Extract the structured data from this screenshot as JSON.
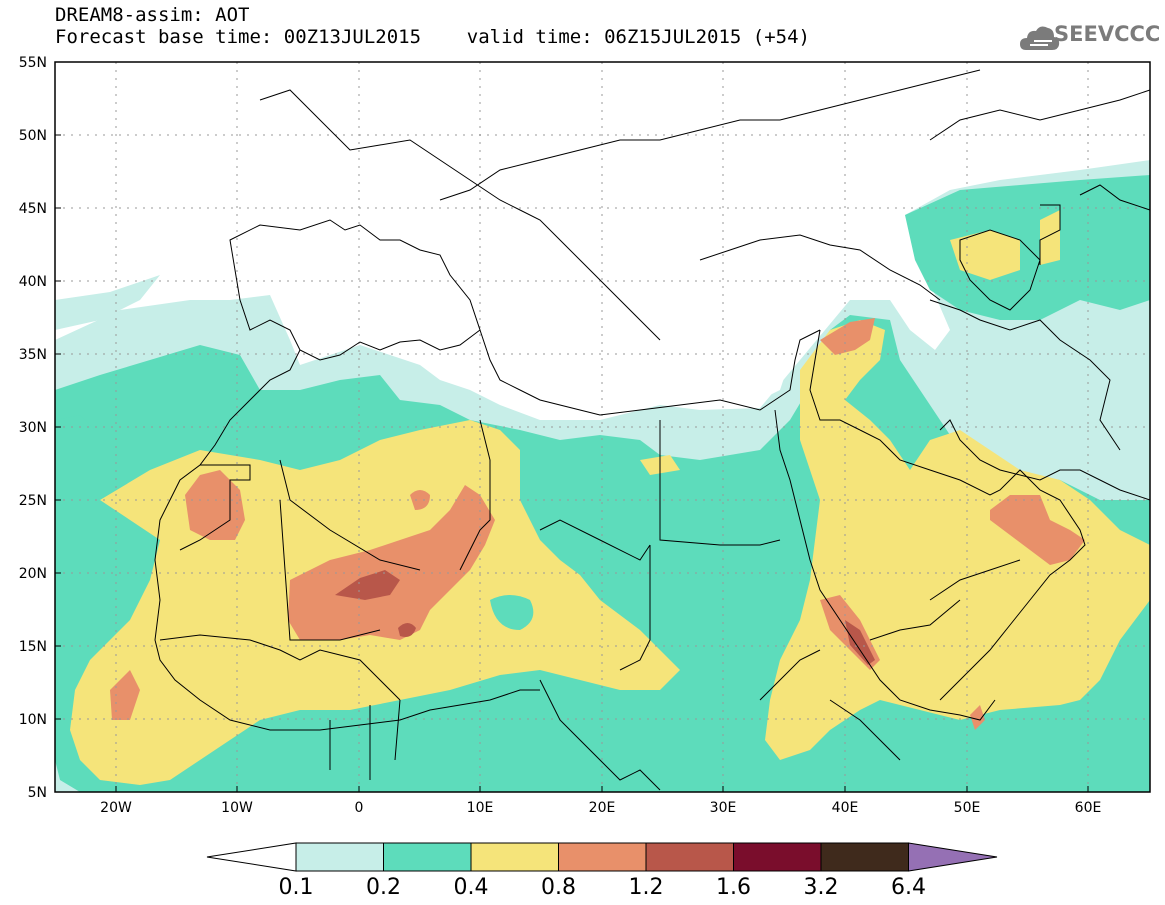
{
  "header": {
    "line1": "DREAM8-assim: AOT",
    "line2": "Forecast base time: 00Z13JUL2015    valid time: 06Z15JUL2015 (+54)"
  },
  "logo": {
    "text": "SEEVCCC",
    "icon": "cloud-icon"
  },
  "map": {
    "lon_range": [
      -25,
      65
    ],
    "lat_range": [
      5,
      55
    ],
    "lat_ticks": [
      "5N",
      "10N",
      "15N",
      "20N",
      "25N",
      "30N",
      "35N",
      "40N",
      "45N",
      "50N",
      "55N"
    ],
    "lon_ticks": [
      "20W",
      "10W",
      "0",
      "10E",
      "20E",
      "30E",
      "40E",
      "50E",
      "60E"
    ],
    "grid": true
  },
  "colorbar": {
    "labels": [
      "0.1",
      "0.2",
      "0.4",
      "0.8",
      "1.2",
      "1.6",
      "3.2",
      "6.4"
    ],
    "colors": [
      "#ffffff",
      "#c7eee8",
      "#5ddcbb",
      "#f5e47a",
      "#e8906a",
      "#b8574a",
      "#7a0d2c",
      "#3f2a1c",
      "#9570b4"
    ]
  },
  "palette": {
    "c1": "#c7eee8",
    "c2": "#5ddcbb",
    "c3": "#f5e47a",
    "c4": "#e8906a",
    "c5": "#b8574a"
  }
}
